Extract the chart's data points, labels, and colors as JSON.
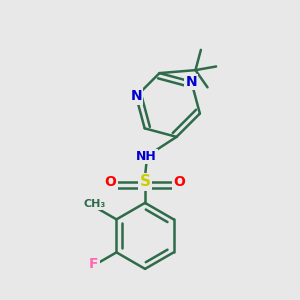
{
  "background_color": "#e8e8e8",
  "bond_color": "#2d6b4a",
  "atom_colors": {
    "N": "#0000cd",
    "S": "#cccc00",
    "O": "#ff0000",
    "F": "#ff69b4",
    "C": "#2d6b4a",
    "H": "#888888"
  },
  "figsize": [
    3.0,
    3.0
  ],
  "dpi": 100
}
